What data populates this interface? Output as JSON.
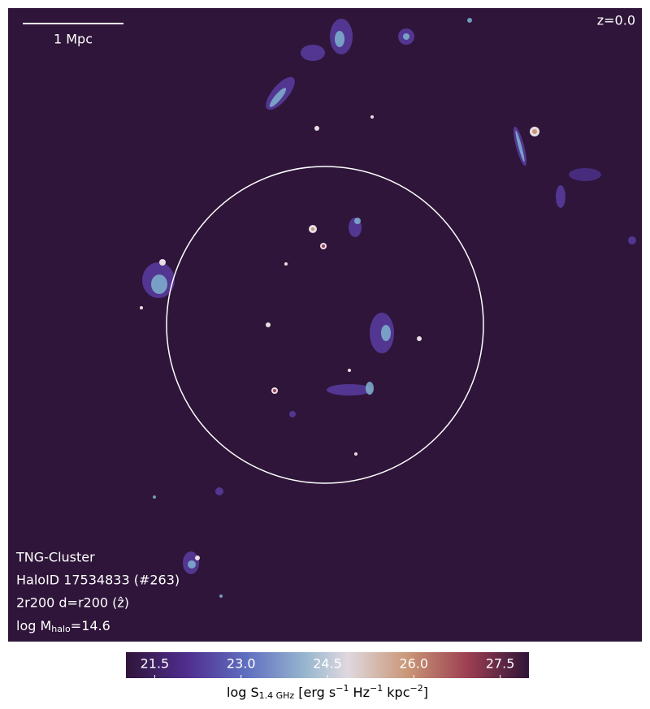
{
  "annotations": {
    "scale_bar": "1 Mpc",
    "redshift": "z=0.0",
    "info": [
      "TNG-Cluster",
      "HaloID 17534833 (#263)",
      "2r200 d=r200 (ẑ)"
    ],
    "mass": [
      "log M",
      "halo",
      "=14.6"
    ]
  },
  "chart_data": {
    "type": "colorbar",
    "clim": [
      21,
      28
    ],
    "ticks": [
      21.5,
      {
        "value": 23,
        "label": "23.0"
      },
      24.5,
      {
        "value": 26,
        "label": "26.0"
      },
      27.5
    ],
    "label": [
      "log S",
      "1.4 GHz",
      " [erg s",
      "−1",
      " Hz",
      "−1",
      " kpc",
      "−2",
      "]"
    ]
  }
}
